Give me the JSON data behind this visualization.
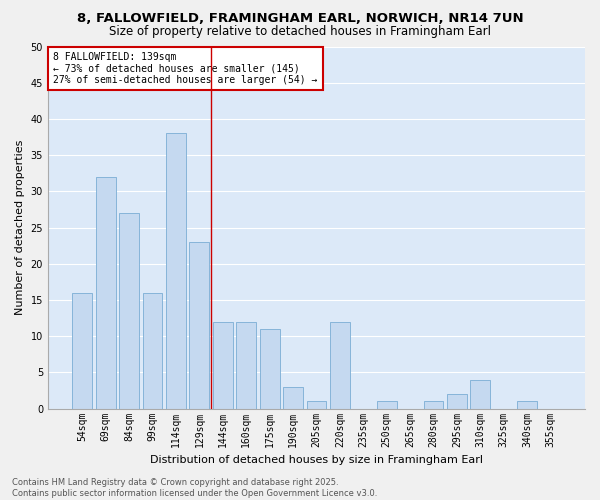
{
  "title_line1": "8, FALLOWFIELD, FRAMINGHAM EARL, NORWICH, NR14 7UN",
  "title_line2": "Size of property relative to detached houses in Framingham Earl",
  "xlabel": "Distribution of detached houses by size in Framingham Earl",
  "ylabel": "Number of detached properties",
  "categories": [
    "54sqm",
    "69sqm",
    "84sqm",
    "99sqm",
    "114sqm",
    "129sqm",
    "144sqm",
    "160sqm",
    "175sqm",
    "190sqm",
    "205sqm",
    "220sqm",
    "235sqm",
    "250sqm",
    "265sqm",
    "280sqm",
    "295sqm",
    "310sqm",
    "325sqm",
    "340sqm",
    "355sqm"
  ],
  "values": [
    16,
    32,
    27,
    16,
    38,
    23,
    12,
    12,
    11,
    3,
    1,
    12,
    0,
    1,
    0,
    1,
    2,
    4,
    0,
    1,
    0
  ],
  "bar_color": "#c5d9f0",
  "bar_edge_color": "#7aadd4",
  "background_color": "#dce9f8",
  "grid_color": "#ffffff",
  "fig_background": "#f0f0f0",
  "vline_x": 5.5,
  "vline_color": "#cc0000",
  "annotation_text": "8 FALLOWFIELD: 139sqm\n← 73% of detached houses are smaller (145)\n27% of semi-detached houses are larger (54) →",
  "annotation_box_edgecolor": "#cc0000",
  "ylim": [
    0,
    50
  ],
  "yticks": [
    0,
    5,
    10,
    15,
    20,
    25,
    30,
    35,
    40,
    45,
    50
  ],
  "footnote": "Contains HM Land Registry data © Crown copyright and database right 2025.\nContains public sector information licensed under the Open Government Licence v3.0.",
  "title_fontsize": 9.5,
  "subtitle_fontsize": 8.5,
  "axis_label_fontsize": 8,
  "tick_fontsize": 7,
  "annotation_fontsize": 7,
  "footnote_fontsize": 6
}
